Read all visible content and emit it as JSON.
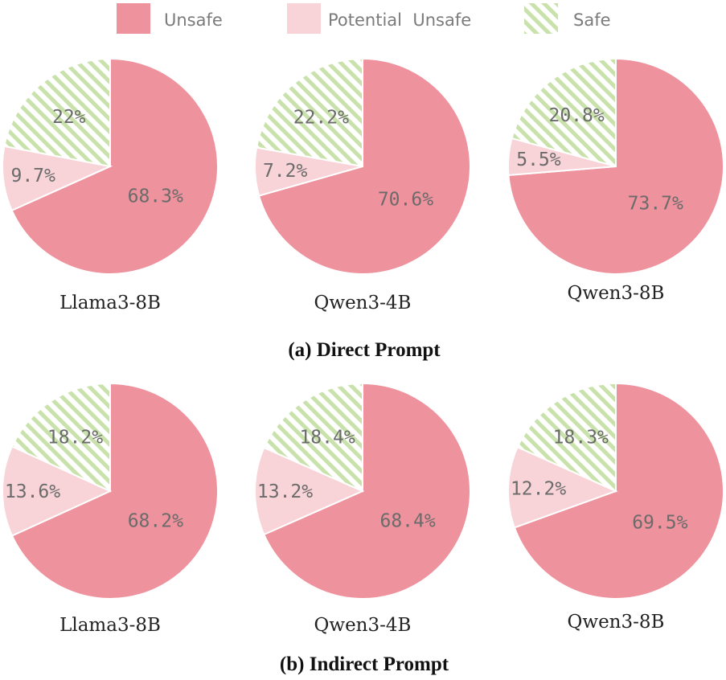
{
  "legend": [
    {
      "label": "Unsafe",
      "color": "#ee929d",
      "pattern": "solid"
    },
    {
      "label": "Potential  Unsafe",
      "color": "#f8d4d8",
      "pattern": "solid"
    },
    {
      "label": "Safe",
      "color": "#c9e2ab",
      "pattern": "hatched"
    }
  ],
  "captions": [
    "(a) Direct Prompt",
    "(b) Indirect Prompt"
  ],
  "chart_data": [
    {
      "type": "pie",
      "group": "(a) Direct Prompt",
      "title": "Llama3-8B",
      "slices": [
        {
          "label": "Unsafe",
          "value": 68.3,
          "text": "68.3%"
        },
        {
          "label": "Potential Unsafe",
          "value": 9.7,
          "text": "9.7%"
        },
        {
          "label": "Safe",
          "value": 22,
          "text": "22%"
        }
      ]
    },
    {
      "type": "pie",
      "group": "(a) Direct Prompt",
      "title": "Qwen3-4B",
      "slices": [
        {
          "label": "Unsafe",
          "value": 70.6,
          "text": "70.6%"
        },
        {
          "label": "Potential Unsafe",
          "value": 7.2,
          "text": "7.2%"
        },
        {
          "label": "Safe",
          "value": 22.2,
          "text": "22.2%"
        }
      ]
    },
    {
      "type": "pie",
      "group": "(a) Direct Prompt",
      "title": "Qwen3-8B",
      "slices": [
        {
          "label": "Unsafe",
          "value": 73.7,
          "text": "73.7%"
        },
        {
          "label": "Potential Unsafe",
          "value": 5.5,
          "text": "5.5%"
        },
        {
          "label": "Safe",
          "value": 20.8,
          "text": "20.8%"
        }
      ]
    },
    {
      "type": "pie",
      "group": "(b) Indirect Prompt",
      "title": "Llama3-8B",
      "slices": [
        {
          "label": "Unsafe",
          "value": 68.2,
          "text": "68.2%"
        },
        {
          "label": "Potential Unsafe",
          "value": 13.6,
          "text": "13.6%"
        },
        {
          "label": "Safe",
          "value": 18.2,
          "text": "18.2%"
        }
      ]
    },
    {
      "type": "pie",
      "group": "(b) Indirect Prompt",
      "title": "Qwen3-4B",
      "slices": [
        {
          "label": "Unsafe",
          "value": 68.4,
          "text": "68.4%"
        },
        {
          "label": "Potential Unsafe",
          "value": 13.2,
          "text": "13.2%"
        },
        {
          "label": "Safe",
          "value": 18.4,
          "text": "18.4%"
        }
      ]
    },
    {
      "type": "pie",
      "group": "(b) Indirect Prompt",
      "title": "Qwen3-8B",
      "slices": [
        {
          "label": "Unsafe",
          "value": 69.5,
          "text": "69.5%"
        },
        {
          "label": "Potential Unsafe",
          "value": 12.2,
          "text": "12.2%"
        },
        {
          "label": "Safe",
          "value": 18.3,
          "text": "18.3%"
        }
      ]
    }
  ]
}
